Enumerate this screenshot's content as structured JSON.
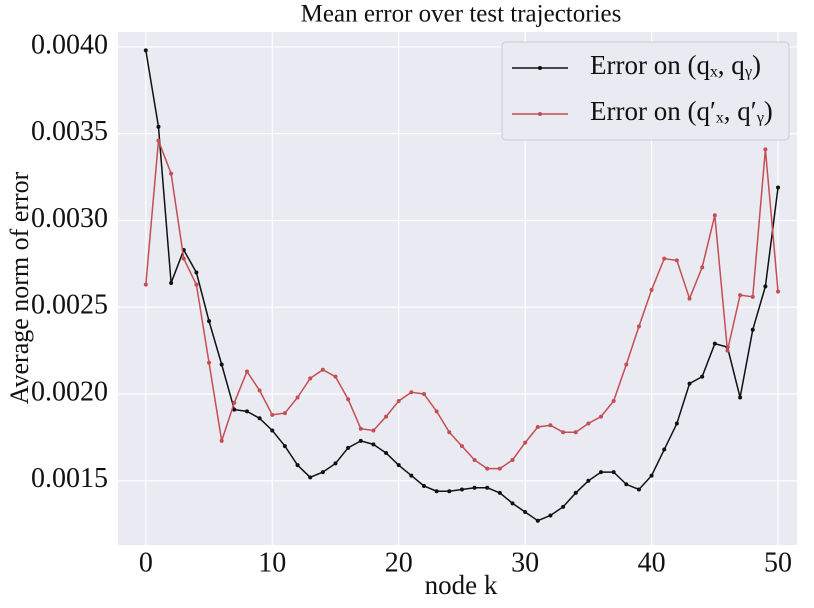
{
  "chart_data": {
    "type": "line",
    "title": "Mean error over test trajectories",
    "x_label": "node k",
    "y_label": "Average norm of error",
    "x": [
      0,
      1,
      2,
      3,
      4,
      5,
      6,
      7,
      8,
      9,
      10,
      11,
      12,
      13,
      14,
      15,
      16,
      17,
      18,
      19,
      20,
      21,
      22,
      23,
      24,
      25,
      26,
      27,
      28,
      29,
      30,
      31,
      32,
      33,
      34,
      35,
      36,
      37,
      38,
      39,
      40,
      41,
      42,
      43,
      44,
      45,
      46,
      47,
      48,
      49,
      50
    ],
    "series": [
      {
        "name": "Error on (qₓ, qᵧ)",
        "color": "#111111",
        "values": [
          0.00398,
          0.00354,
          0.00264,
          0.00283,
          0.0027,
          0.00242,
          0.00217,
          0.00191,
          0.0019,
          0.00186,
          0.00179,
          0.0017,
          0.00159,
          0.00152,
          0.00155,
          0.0016,
          0.00169,
          0.00173,
          0.00171,
          0.00166,
          0.00159,
          0.00153,
          0.00147,
          0.00144,
          0.00144,
          0.00145,
          0.00146,
          0.00146,
          0.00143,
          0.00137,
          0.00132,
          0.00127,
          0.0013,
          0.00135,
          0.00143,
          0.0015,
          0.00155,
          0.00155,
          0.00148,
          0.00145,
          0.00153,
          0.00168,
          0.00183,
          0.00206,
          0.0021,
          0.00229,
          0.00227,
          0.00198,
          0.00237,
          0.00262,
          0.00319
        ]
      },
      {
        "name": "Error on (q′ₓ, q′ᵧ)",
        "color": "#c44e52",
        "values": [
          0.00263,
          0.00346,
          0.00327,
          0.00278,
          0.00263,
          0.00218,
          0.00173,
          0.00195,
          0.00213,
          0.00202,
          0.00188,
          0.00189,
          0.00198,
          0.00209,
          0.00214,
          0.0021,
          0.00197,
          0.0018,
          0.00179,
          0.00187,
          0.00196,
          0.00201,
          0.002,
          0.0019,
          0.00178,
          0.0017,
          0.00162,
          0.00157,
          0.00157,
          0.00162,
          0.00172,
          0.00181,
          0.00182,
          0.00178,
          0.00178,
          0.00183,
          0.00187,
          0.00196,
          0.00217,
          0.00239,
          0.0026,
          0.00278,
          0.00277,
          0.00255,
          0.00273,
          0.00303,
          0.00225,
          0.00257,
          0.00256,
          0.00341,
          0.00259
        ]
      }
    ],
    "xlim": [
      -2.2,
      51.5
    ],
    "ylim": [
      0.00113,
      0.004086
    ],
    "xticks": [
      0,
      10,
      20,
      30,
      40,
      50
    ],
    "yticks": [
      0.0015,
      {
        "value": 0.002,
        "label": "0.0020"
      },
      0.0025,
      {
        "value": 0.003,
        "label": "0.0030"
      },
      0.0035,
      {
        "value": 0.004,
        "label": "0.0040"
      }
    ],
    "grid": true,
    "legend": "upper right"
  }
}
